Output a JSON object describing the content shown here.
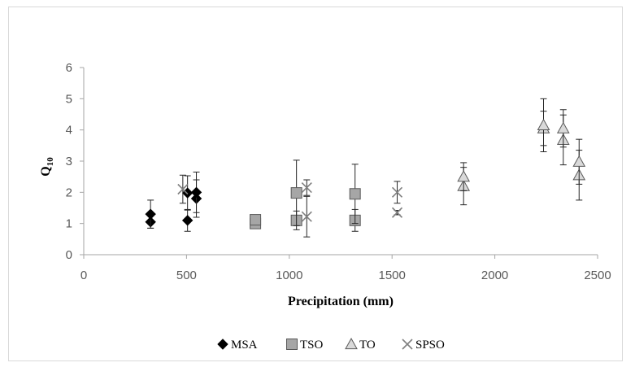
{
  "chart_data": {
    "type": "scatter",
    "title": "",
    "xlabel": "Precipitation (mm)",
    "ylabel_main": "Q",
    "ylabel_sub": "10",
    "xlim": [
      0,
      2500
    ],
    "ylim": [
      0,
      6
    ],
    "xticks": [
      "0",
      "500",
      "1000",
      "1500",
      "2000",
      "2500"
    ],
    "yticks": [
      "0",
      "1",
      "2",
      "3",
      "4",
      "5",
      "6"
    ],
    "grid": false,
    "legend_position": "bottom",
    "series": [
      {
        "name": "MSA",
        "marker": "diamond",
        "color": "#000000",
        "points": [
          {
            "x": 325,
            "y": 1.05,
            "err": 0.2
          },
          {
            "x": 325,
            "y": 1.3,
            "err": 0.45
          },
          {
            "x": 505,
            "y": 1.1,
            "err": 0.35
          },
          {
            "x": 505,
            "y": 1.98,
            "err": 0.55
          },
          {
            "x": 548,
            "y": 1.8,
            "err": 0.6
          },
          {
            "x": 548,
            "y": 2.0,
            "err": 0.65
          }
        ]
      },
      {
        "name": "TSO",
        "marker": "square",
        "color": "#a6a6a6",
        "points": [
          {
            "x": 835,
            "y": 1.0,
            "err": 0.1
          },
          {
            "x": 835,
            "y": 1.12,
            "err": 0.1
          },
          {
            "x": 1035,
            "y": 1.1,
            "err": 0.3
          },
          {
            "x": 1035,
            "y": 1.98,
            "err": 1.05
          },
          {
            "x": 1320,
            "y": 1.1,
            "err": 0.35
          },
          {
            "x": 1320,
            "y": 1.95,
            "err": 0.95
          }
        ]
      },
      {
        "name": "TO",
        "marker": "triangle",
        "color": "#d9d9d9",
        "points": [
          {
            "x": 1848,
            "y": 2.2,
            "err": 0.6
          },
          {
            "x": 1848,
            "y": 2.5,
            "err": 0.45
          },
          {
            "x": 2237,
            "y": 4.05,
            "err": 0.55
          },
          {
            "x": 2237,
            "y": 4.15,
            "err": 0.85
          },
          {
            "x": 2333,
            "y": 3.68,
            "err": 0.8
          },
          {
            "x": 2333,
            "y": 4.05,
            "err": 0.6
          },
          {
            "x": 2410,
            "y": 2.55,
            "err": 0.8
          },
          {
            "x": 2410,
            "y": 2.98,
            "err": 0.72
          }
        ]
      },
      {
        "name": "SPSO",
        "marker": "cross",
        "color": "#808080",
        "points": [
          {
            "x": 482,
            "y": 2.1,
            "err": 0.45
          },
          {
            "x": 1085,
            "y": 1.22,
            "err": 0.65
          },
          {
            "x": 1085,
            "y": 2.15,
            "err": 0.25
          },
          {
            "x": 1525,
            "y": 1.35,
            "err": 0.07
          },
          {
            "x": 1525,
            "y": 2.0,
            "err": 0.35
          }
        ]
      }
    ]
  }
}
